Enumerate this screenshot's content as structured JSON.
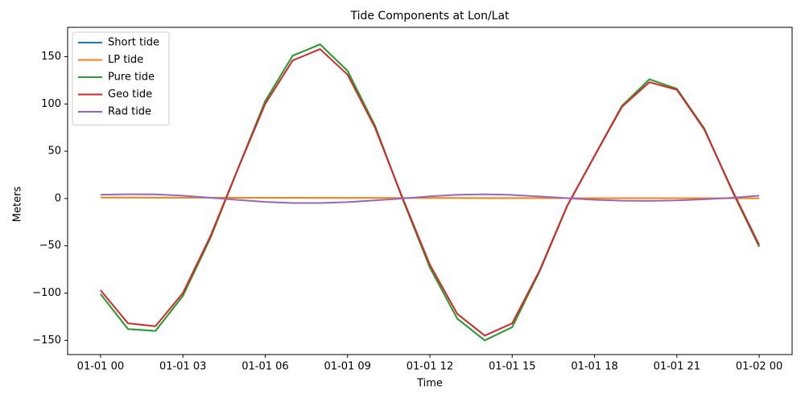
{
  "chart_data": {
    "type": "line",
    "title": "Tide Components at Lon/Lat",
    "x_label": "Time",
    "y_label": "Meters",
    "x": [
      0,
      1,
      2,
      3,
      4,
      5,
      6,
      7,
      8,
      9,
      10,
      11,
      12,
      13,
      14,
      15,
      16,
      17,
      18,
      19,
      20,
      21,
      22,
      23,
      24
    ],
    "xlim": [
      -1.2,
      25.2
    ],
    "xticks": [
      {
        "value": 0,
        "label": "01-01 00"
      },
      {
        "value": 3,
        "label": "01-01 03"
      },
      {
        "value": 6,
        "label": "01-01 06"
      },
      {
        "value": 9,
        "label": "01-01 09"
      },
      {
        "value": 12,
        "label": "01-01 12"
      },
      {
        "value": 15,
        "label": "01-01 15"
      },
      {
        "value": 18,
        "label": "01-01 18"
      },
      {
        "value": 21,
        "label": "01-01 21"
      },
      {
        "value": 24,
        "label": "01-02 00"
      }
    ],
    "ylim": [
      -165,
      181
    ],
    "yticks": [
      {
        "value": -150,
        "label": "−150"
      },
      {
        "value": -100,
        "label": "−100"
      },
      {
        "value": -50,
        "label": "−50"
      },
      0,
      50,
      100,
      150
    ],
    "legend": "upper left",
    "series": [
      {
        "name": "Short tide",
        "color": "#1f77b4",
        "values": [
          -101,
          -138,
          -140,
          -103,
          -42,
          31,
          103,
          151,
          163,
          135,
          77,
          0,
          -73,
          -127,
          -150,
          -136,
          -77,
          -8,
          45,
          98,
          126,
          116,
          74,
          9,
          -51
        ]
      },
      {
        "name": "LP tide",
        "color": "#ff7f0e",
        "values": [
          1.0,
          1.0,
          0.9,
          0.9,
          0.9,
          0.8,
          0.8,
          0.8,
          0.7,
          0.7,
          0.7,
          0.6,
          0.6,
          0.6,
          0.5,
          0.5,
          0.5,
          0.4,
          0.4,
          0.4,
          0.3,
          0.3,
          0.3,
          0.2,
          0.2
        ]
      },
      {
        "name": "Pure tide",
        "color": "#2ca02c",
        "values": [
          -101,
          -138,
          -140,
          -103,
          -42,
          31,
          103,
          151,
          163,
          135,
          77,
          0,
          -73,
          -127,
          -150,
          -136,
          -77,
          -8,
          45,
          98,
          126,
          116,
          74,
          9,
          -51
        ]
      },
      {
        "name": "Geo tide",
        "color": "#d62728",
        "values": [
          -97,
          -132,
          -135,
          -100,
          -40,
          31,
          100,
          146,
          158,
          131,
          75,
          1,
          -70,
          -122,
          -145,
          -132,
          -76,
          -8,
          45,
          97,
          123,
          115,
          73,
          10,
          -49
        ]
      },
      {
        "name": "Rad tide",
        "color": "#9467bd",
        "values": [
          4,
          4.5,
          4.4,
          3,
          0.8,
          -1.5,
          -3.6,
          -4.8,
          -4.8,
          -3.8,
          -2,
          0,
          2.3,
          4,
          4.5,
          3.8,
          2.2,
          0.3,
          -1.3,
          -2.3,
          -2.5,
          -2,
          -0.8,
          0.8,
          3
        ]
      }
    ]
  }
}
